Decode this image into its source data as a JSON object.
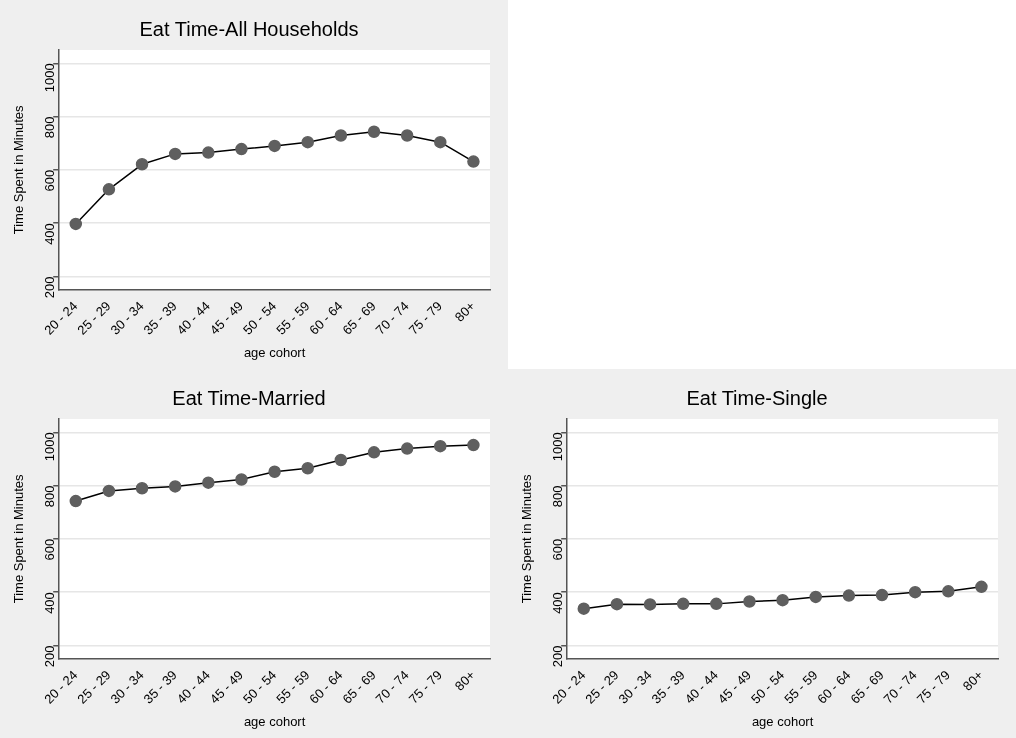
{
  "chart_data": [
    {
      "type": "line",
      "title": "Eat Time-All Households",
      "xlabel": "age cohort",
      "ylabel": "Time Spent in Minutes",
      "categories": [
        "20 - 24",
        "25 - 29",
        "30 - 34",
        "35 - 39",
        "40 - 44",
        "45 - 49",
        "50 - 54",
        "55 - 59",
        "60 - 64",
        "65 - 69",
        "70 - 74",
        "75 - 79",
        "80+"
      ],
      "series": [
        {
          "color": "#5f5f5f",
          "values": [
            397,
            527,
            621,
            660,
            665,
            678,
            690,
            704,
            729,
            743,
            729,
            704,
            631
          ]
        }
      ],
      "ylim": [
        150,
        1050
      ],
      "yticks": [
        200,
        400,
        600,
        800,
        1000
      ],
      "grid": "y",
      "legend": false,
      "marker": "circle",
      "line_style": "solid"
    },
    {
      "type": "line",
      "title": "Eat Time-Married",
      "xlabel": "age cohort",
      "ylabel": "Time Spent in Minutes",
      "categories": [
        "20 - 24",
        "25 - 29",
        "30 - 34",
        "35 - 39",
        "40 - 44",
        "45 - 49",
        "50 - 54",
        "55 - 59",
        "60 - 64",
        "65 - 69",
        "70 - 74",
        "75 - 79",
        "80+"
      ],
      "series": [
        {
          "color": "#5f5f5f",
          "values": [
            742,
            780,
            790,
            797,
            811,
            823,
            852,
            865,
            896,
            925,
            939,
            948,
            952
          ]
        }
      ],
      "ylim": [
        150,
        1050
      ],
      "yticks": [
        200,
        400,
        600,
        800,
        1000
      ],
      "grid": "y",
      "legend": false,
      "marker": "circle",
      "line_style": "solid"
    },
    {
      "type": "line",
      "title": "Eat Time-Single",
      "xlabel": "age cohort",
      "ylabel": "Time Spent in Minutes",
      "categories": [
        "20 - 24",
        "25 - 29",
        "30 - 34",
        "35 - 39",
        "40 - 44",
        "45 - 49",
        "50 - 54",
        "55 - 59",
        "60 - 64",
        "65 - 69",
        "70 - 74",
        "75 - 79",
        "80+"
      ],
      "series": [
        {
          "color": "#5f5f5f",
          "values": [
            338,
            355,
            354,
            356,
            356,
            365,
            370,
            382,
            387,
            389,
            400,
            403,
            420
          ]
        }
      ],
      "ylim": [
        150,
        1050
      ],
      "yticks": [
        200,
        400,
        600,
        800,
        1000
      ],
      "grid": "y",
      "legend": false,
      "marker": "circle",
      "line_style": "solid"
    }
  ]
}
